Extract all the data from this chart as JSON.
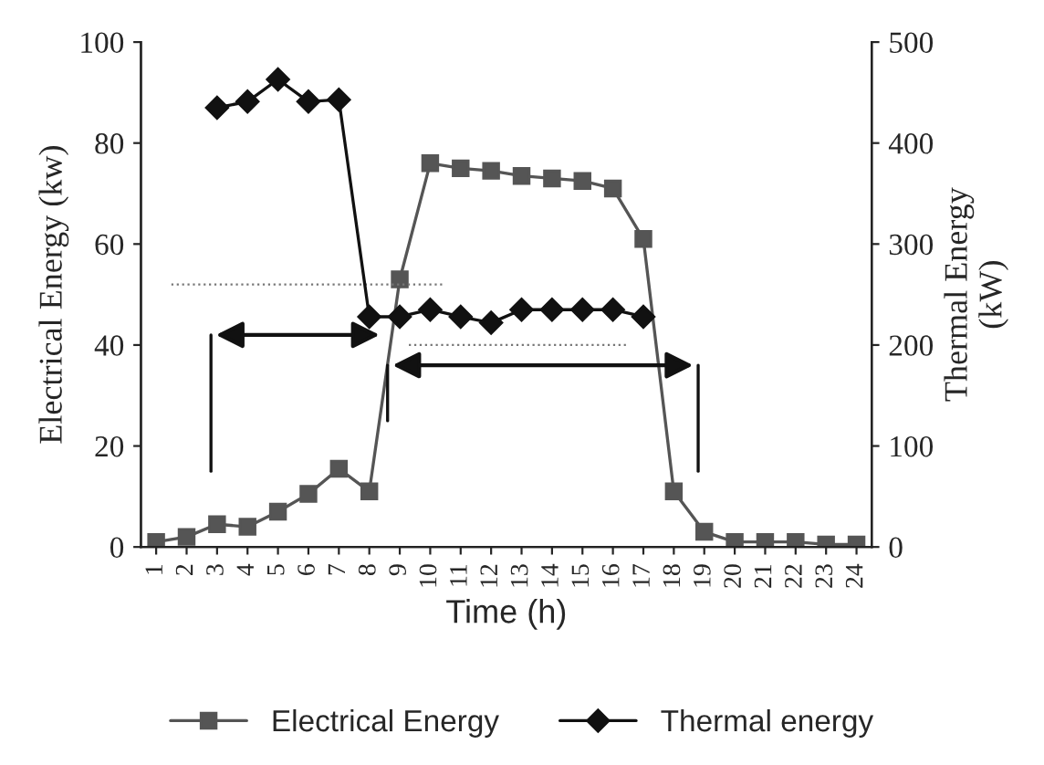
{
  "chart_data": {
    "type": "line",
    "xlabel": "Time (h)",
    "ylabel": "Electrical Energy (kw)",
    "y2label": "Thermal Energy\n(kW)",
    "categories": [
      "1",
      "2",
      "3",
      "4",
      "5",
      "6",
      "7",
      "8",
      "9",
      "10",
      "11",
      "12",
      "13",
      "14",
      "15",
      "16",
      "17",
      "18",
      "19",
      "20",
      "21",
      "22",
      "23",
      "24"
    ],
    "series": [
      {
        "name": "Electrical Energy",
        "color": "#555555",
        "marker": "square",
        "values": [
          1,
          2,
          4.5,
          4,
          7,
          10.5,
          15.5,
          11,
          53,
          76,
          75,
          74.5,
          73.5,
          73,
          72.5,
          71,
          61,
          11,
          3,
          1,
          1,
          1,
          0.5,
          0.5
        ]
      },
      {
        "name": "Thermal energy",
        "color": "#111111",
        "marker": "diamond",
        "axis": "y2",
        "values": [
          null,
          null,
          435,
          441,
          463,
          441,
          443,
          228,
          228,
          235,
          228,
          222,
          235,
          235,
          235,
          235,
          228,
          null,
          null,
          null,
          null,
          null,
          null,
          null
        ]
      }
    ],
    "ylim": [
      0,
      100
    ],
    "yticks": [
      0,
      20,
      40,
      60,
      80,
      100
    ],
    "y2lim": [
      0,
      500
    ],
    "y2ticks": [
      0,
      100,
      200,
      300,
      400,
      500
    ],
    "grid": false,
    "legend": "bottom",
    "line_style": "solid"
  }
}
